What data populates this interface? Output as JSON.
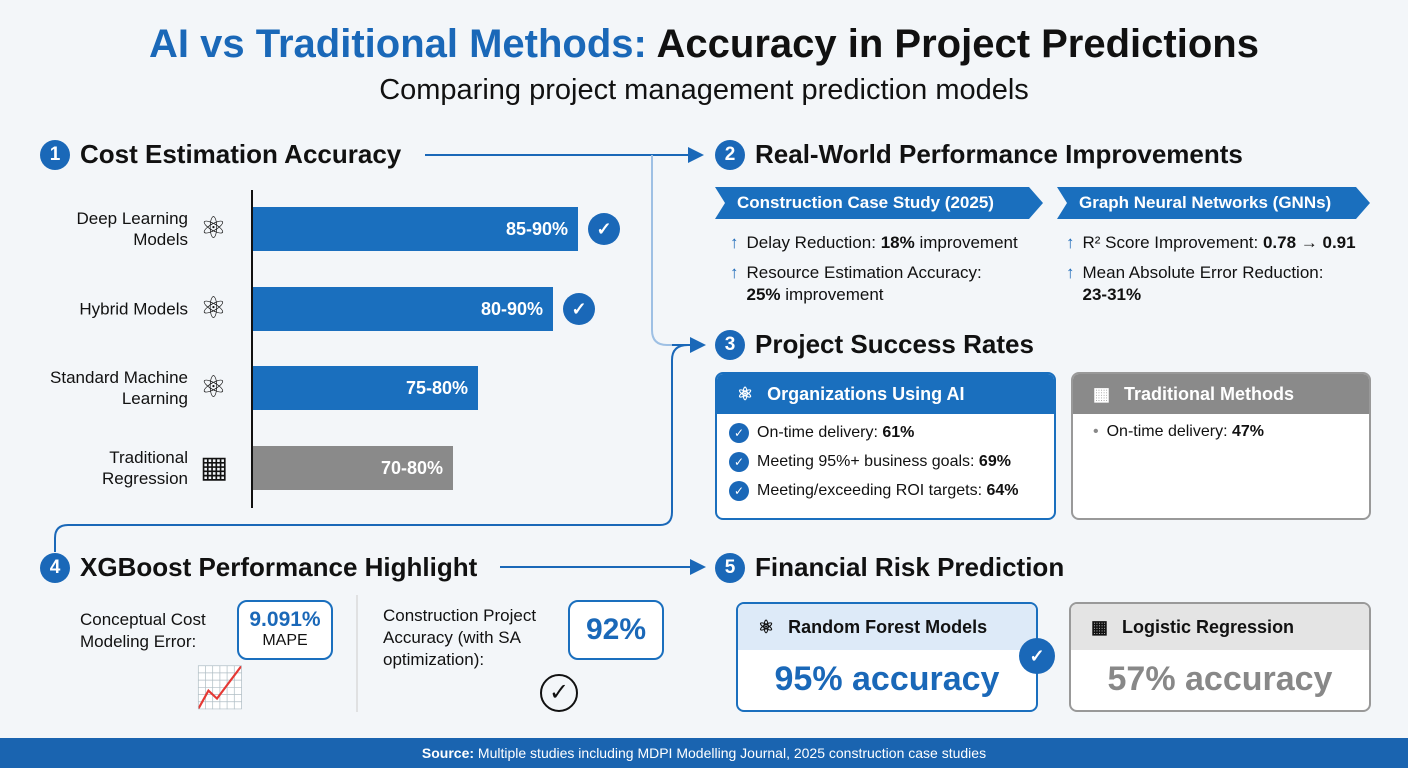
{
  "title": {
    "part1": "AI vs Traditional Methods:",
    "part2": "Accuracy in Project Predictions",
    "subtitle": "Comparing project management prediction models"
  },
  "s1": {
    "num": "1",
    "title": "Cost Estimation Accuracy"
  },
  "chart_data": {
    "type": "bar",
    "orientation": "horizontal",
    "categories": [
      "Deep Learning Models",
      "Hybrid Models",
      "Standard Machine Learning",
      "Traditional Regression"
    ],
    "ranges": [
      [
        85,
        90
      ],
      [
        80,
        90
      ],
      [
        75,
        80
      ],
      [
        70,
        80
      ]
    ],
    "labels": [
      "85-90%",
      "80-90%",
      "75-80%",
      "70-80%"
    ],
    "colors": [
      "#1a6fbe",
      "#1a6fbe",
      "#1a6fbe",
      "#8a8a8a"
    ],
    "icons": [
      "neural-network-icon",
      "neural-network-icon",
      "neural-network-icon",
      "calculator-icon"
    ],
    "checked": [
      true,
      true,
      false,
      false
    ]
  },
  "s2": {
    "num": "2",
    "title": "Real-World Performance Improvements",
    "left": {
      "banner": "Construction Case Study (2025)",
      "items": [
        {
          "text": "Delay Reduction: ",
          "bold": "18%",
          "after": " improvement"
        },
        {
          "text": "Resource Estimation Accuracy: ",
          "bold": "25%",
          "after": " improvement"
        }
      ]
    },
    "right": {
      "banner": "Graph Neural Networks (GNNs)",
      "items": [
        {
          "text": "R² Score Improvement: ",
          "bold": "0.78 → 0.91",
          "after": ""
        },
        {
          "text": "Mean Absolute Error Reduction: ",
          "bold": "23-31%",
          "after": ""
        }
      ]
    }
  },
  "s3": {
    "num": "3",
    "title": "Project Success Rates",
    "ai": {
      "title": "Organizations Using AI",
      "items": [
        {
          "text": "On-time delivery: ",
          "bold": "61%"
        },
        {
          "text": "Meeting 95%+ business goals: ",
          "bold": "69%"
        },
        {
          "text": "Meeting/exceeding ROI targets: ",
          "bold": "64%"
        }
      ]
    },
    "trad": {
      "title": "Traditional Methods",
      "items": [
        {
          "text": "On-time delivery: ",
          "bold": "47%"
        }
      ]
    }
  },
  "s4": {
    "num": "4",
    "title": "XGBoost Performance Highlight",
    "l1": "Conceptual Cost Modeling Error:",
    "v1": "9.091%",
    "u1": "MAPE",
    "l2": "Construction Project Accuracy (with SA optimization):",
    "v2": "92%"
  },
  "s5": {
    "num": "5",
    "title": "Financial Risk Prediction",
    "rf": {
      "title": "Random Forest Models",
      "value": "95% accuracy"
    },
    "lr": {
      "title": "Logistic Regression",
      "value": "57% accuracy"
    }
  },
  "footer": {
    "label": "Source:",
    "text": " Multiple studies including MDPI Modelling Journal, 2025 construction case studies"
  }
}
